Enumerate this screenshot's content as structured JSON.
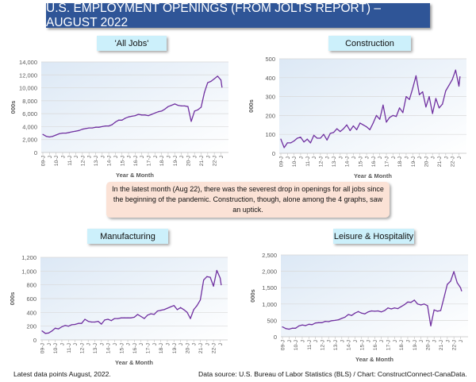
{
  "title": "U.S. EMPLOYMENT OPENINGS (FROM JOLTS REPORT) – AUGUST 2022",
  "note": "In the latest month (Aug 22), there was the severest drop in openings for all jobs since the beginning of the pandemic. Construction, though, alone among the 4 graphs, saw an uptick.",
  "footer": {
    "left": "Latest data points August, 2022.",
    "right": "Data source: U.S. Bureau of Labor Statistics (BLS) / Chart: ConstructConnect-CanaData."
  },
  "colors": {
    "line": "#7030a0",
    "banner": "#2f5597",
    "title_box": "#ccf0fb",
    "note_box": "#fbe2d6"
  },
  "chart_data": [
    {
      "type": "line",
      "title": "'All Jobs'",
      "xlabel": "Year & Month",
      "ylabel": "000s",
      "ylim": [
        0,
        14000
      ],
      "yticks": [
        0,
        2000,
        4000,
        6000,
        8000,
        10000,
        12000,
        14000
      ],
      "grid": true,
      "xticklabels": [
        "09-J",
        "J",
        "10-J",
        "J",
        "11-J",
        "J",
        "12-J",
        "J",
        "13-J",
        "J",
        "14-J",
        "J",
        "15-J",
        "J",
        "16-J",
        "J",
        "17-J",
        "J",
        "18-J",
        "J",
        "19-J",
        "J",
        "20-J",
        "J",
        "21-J",
        "J",
        "22-J",
        "J"
      ],
      "x": [
        "2009-01",
        "2009-04",
        "2009-07",
        "2009-10",
        "2010-01",
        "2010-04",
        "2010-07",
        "2010-10",
        "2011-01",
        "2011-04",
        "2011-07",
        "2011-10",
        "2012-01",
        "2012-04",
        "2012-07",
        "2012-10",
        "2013-01",
        "2013-04",
        "2013-07",
        "2013-10",
        "2014-01",
        "2014-04",
        "2014-07",
        "2014-10",
        "2015-01",
        "2015-04",
        "2015-07",
        "2015-10",
        "2016-01",
        "2016-04",
        "2016-07",
        "2016-10",
        "2017-01",
        "2017-04",
        "2017-07",
        "2017-10",
        "2018-01",
        "2018-04",
        "2018-07",
        "2018-10",
        "2019-01",
        "2019-04",
        "2019-07",
        "2019-10",
        "2020-01",
        "2020-04",
        "2020-07",
        "2020-10",
        "2021-01",
        "2021-04",
        "2021-07",
        "2021-10",
        "2022-01",
        "2022-04",
        "2022-07",
        "2022-08"
      ],
      "values": [
        2800,
        2500,
        2400,
        2500,
        2700,
        2900,
        3000,
        3000,
        3100,
        3200,
        3300,
        3400,
        3600,
        3700,
        3800,
        3800,
        3900,
        3900,
        4000,
        4100,
        4100,
        4300,
        4700,
        5000,
        5000,
        5300,
        5500,
        5600,
        5700,
        5900,
        5800,
        5800,
        5700,
        5900,
        6100,
        6300,
        6400,
        6700,
        7100,
        7300,
        7500,
        7300,
        7200,
        7200,
        7100,
        4800,
        6400,
        6600,
        7000,
        9300,
        10800,
        11000,
        11400,
        11800,
        11200,
        10100
      ]
    },
    {
      "type": "line",
      "title": "Construction",
      "xlabel": "Year & Month",
      "ylabel": "000s",
      "ylim": [
        0,
        500
      ],
      "yticks": [
        0,
        100,
        200,
        300,
        400,
        500
      ],
      "grid": true,
      "xticklabels": [
        "09-J",
        "J",
        "10-J",
        "J",
        "11-J",
        "J",
        "12-J",
        "J",
        "13-J",
        "J",
        "14-J",
        "J",
        "15-J",
        "J",
        "16-J",
        "J",
        "17-J",
        "J",
        "18-J",
        "J",
        "19-J",
        "J",
        "20-J",
        "J",
        "21-J",
        "J",
        "22-J",
        "J"
      ],
      "x": [
        "2009-01",
        "2009-04",
        "2009-07",
        "2009-10",
        "2010-01",
        "2010-04",
        "2010-07",
        "2010-10",
        "2011-01",
        "2011-04",
        "2011-07",
        "2011-10",
        "2012-01",
        "2012-04",
        "2012-07",
        "2012-10",
        "2013-01",
        "2013-04",
        "2013-07",
        "2013-10",
        "2014-01",
        "2014-04",
        "2014-07",
        "2014-10",
        "2015-01",
        "2015-04",
        "2015-07",
        "2015-10",
        "2016-01",
        "2016-04",
        "2016-07",
        "2016-10",
        "2017-01",
        "2017-04",
        "2017-07",
        "2017-10",
        "2018-01",
        "2018-04",
        "2018-07",
        "2018-10",
        "2019-01",
        "2019-04",
        "2019-07",
        "2019-10",
        "2020-01",
        "2020-04",
        "2020-07",
        "2020-10",
        "2021-01",
        "2021-04",
        "2021-07",
        "2021-10",
        "2022-01",
        "2022-04",
        "2022-07",
        "2022-08"
      ],
      "values": [
        75,
        30,
        55,
        55,
        65,
        80,
        85,
        60,
        75,
        55,
        95,
        80,
        80,
        100,
        70,
        105,
        110,
        130,
        115,
        130,
        150,
        120,
        145,
        125,
        160,
        150,
        140,
        125,
        160,
        200,
        180,
        255,
        165,
        190,
        200,
        195,
        240,
        215,
        300,
        285,
        345,
        410,
        310,
        325,
        245,
        300,
        210,
        290,
        240,
        260,
        330,
        360,
        390,
        440,
        355,
        405
      ]
    },
    {
      "type": "line",
      "title": "Manufacturing",
      "xlabel": "Year & Month",
      "ylabel": "000s",
      "ylim": [
        0,
        1200
      ],
      "yticks": [
        0,
        200,
        400,
        600,
        800,
        1000,
        1200
      ],
      "grid": true,
      "xticklabels": [
        "09-J",
        "J",
        "10-J",
        "J",
        "11-J",
        "J",
        "12-J",
        "J",
        "13-J",
        "J",
        "14-J",
        "J",
        "15-J",
        "J",
        "16-J",
        "J",
        "17-J",
        "J",
        "18-J",
        "J",
        "19-J",
        "J",
        "20-J",
        "J",
        "21-J",
        "J",
        "22-J",
        "J"
      ],
      "x": [
        "2009-01",
        "2009-04",
        "2009-07",
        "2009-10",
        "2010-01",
        "2010-04",
        "2010-07",
        "2010-10",
        "2011-01",
        "2011-04",
        "2011-07",
        "2011-10",
        "2012-01",
        "2012-04",
        "2012-07",
        "2012-10",
        "2013-01",
        "2013-04",
        "2013-07",
        "2013-10",
        "2014-01",
        "2014-04",
        "2014-07",
        "2014-10",
        "2015-01",
        "2015-04",
        "2015-07",
        "2015-10",
        "2016-01",
        "2016-04",
        "2016-07",
        "2016-10",
        "2017-01",
        "2017-04",
        "2017-07",
        "2017-10",
        "2018-01",
        "2018-04",
        "2018-07",
        "2018-10",
        "2019-01",
        "2019-04",
        "2019-07",
        "2019-10",
        "2020-01",
        "2020-04",
        "2020-07",
        "2020-10",
        "2021-01",
        "2021-04",
        "2021-07",
        "2021-10",
        "2022-01",
        "2022-04",
        "2022-07",
        "2022-08"
      ],
      "values": [
        130,
        95,
        100,
        130,
        170,
        160,
        190,
        210,
        200,
        220,
        225,
        240,
        240,
        300,
        270,
        260,
        260,
        270,
        230,
        290,
        300,
        280,
        310,
        310,
        320,
        320,
        320,
        320,
        330,
        370,
        340,
        310,
        360,
        380,
        370,
        420,
        430,
        440,
        460,
        480,
        500,
        440,
        470,
        440,
        400,
        310,
        440,
        500,
        580,
        870,
        920,
        910,
        780,
        1010,
        900,
        800
      ]
    },
    {
      "type": "line",
      "title": "Leisure & Hospitality",
      "xlabel": "Year & Month",
      "ylabel": "000s",
      "ylim": [
        0,
        2500
      ],
      "yticks": [
        0,
        500,
        1000,
        1500,
        2000,
        2500
      ],
      "grid": true,
      "xticklabels": [
        "09-J",
        "J",
        "10-J",
        "J",
        "11-J",
        "J",
        "12-J",
        "J",
        "13-J",
        "J",
        "14-J",
        "J",
        "15-J",
        "J",
        "16-J",
        "J",
        "17-J",
        "J",
        "18-J",
        "J",
        "19-J",
        "J",
        "20-J",
        "J",
        "21-J",
        "J",
        "22-J",
        "J"
      ],
      "x": [
        "2009-01",
        "2009-04",
        "2009-07",
        "2009-10",
        "2010-01",
        "2010-04",
        "2010-07",
        "2010-10",
        "2011-01",
        "2011-04",
        "2011-07",
        "2011-10",
        "2012-01",
        "2012-04",
        "2012-07",
        "2012-10",
        "2013-01",
        "2013-04",
        "2013-07",
        "2013-10",
        "2014-01",
        "2014-04",
        "2014-07",
        "2014-10",
        "2015-01",
        "2015-04",
        "2015-07",
        "2015-10",
        "2016-01",
        "2016-04",
        "2016-07",
        "2016-10",
        "2017-01",
        "2017-04",
        "2017-07",
        "2017-10",
        "2018-01",
        "2018-04",
        "2018-07",
        "2018-10",
        "2019-01",
        "2019-04",
        "2019-07",
        "2019-10",
        "2020-01",
        "2020-04",
        "2020-07",
        "2020-10",
        "2021-01",
        "2021-04",
        "2021-07",
        "2021-10",
        "2022-01",
        "2022-04",
        "2022-07",
        "2022-08"
      ],
      "values": [
        300,
        250,
        230,
        260,
        260,
        330,
        360,
        340,
        380,
        370,
        420,
        430,
        430,
        470,
        460,
        490,
        500,
        520,
        560,
        600,
        680,
        650,
        720,
        770,
        720,
        700,
        760,
        790,
        780,
        790,
        760,
        800,
        880,
        850,
        880,
        860,
        920,
        980,
        1060,
        1050,
        1120,
        1000,
        970,
        1000,
        950,
        330,
        820,
        780,
        800,
        1200,
        1600,
        1700,
        1990,
        1650,
        1500,
        1400
      ]
    }
  ]
}
